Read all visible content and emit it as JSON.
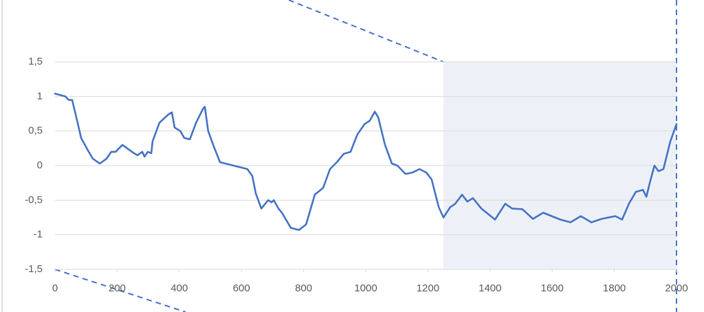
{
  "chart_data": {
    "type": "line",
    "x": [
      0,
      33,
      44,
      55,
      66,
      84,
      106,
      122,
      144,
      166,
      181,
      195,
      217,
      232,
      254,
      265,
      281,
      288,
      299,
      310,
      314,
      336,
      365,
      376,
      385,
      403,
      416,
      434,
      454,
      476,
      482,
      493,
      509,
      531,
      575,
      619,
      635,
      646,
      664,
      686,
      697,
      704,
      719,
      730,
      759,
      785,
      808,
      836,
      863,
      885,
      907,
      929,
      951,
      973,
      996,
      1013,
      1029,
      1040,
      1062,
      1084,
      1102,
      1128,
      1150,
      1173,
      1195,
      1212,
      1235,
      1250,
      1272,
      1288,
      1310,
      1327,
      1345,
      1372,
      1416,
      1449,
      1471,
      1504,
      1538,
      1571,
      1593,
      1626,
      1659,
      1692,
      1726,
      1759,
      1803,
      1825,
      1847,
      1869,
      1892,
      1903,
      1914,
      1929,
      1942,
      1958,
      1980,
      2000
    ],
    "series": [
      {
        "color": "#4472c4",
        "values": [
          1.04,
          1.0,
          0.95,
          0.95,
          0.75,
          0.4,
          0.22,
          0.1,
          0.03,
          0.1,
          0.2,
          0.2,
          0.3,
          0.25,
          0.18,
          0.15,
          0.2,
          0.13,
          0.2,
          0.18,
          0.35,
          0.62,
          0.74,
          0.77,
          0.55,
          0.5,
          0.4,
          0.38,
          0.62,
          0.82,
          0.85,
          0.5,
          0.3,
          0.05,
          0.0,
          -0.05,
          -0.15,
          -0.4,
          -0.62,
          -0.5,
          -0.53,
          -0.5,
          -0.62,
          -0.68,
          -0.9,
          -0.93,
          -0.85,
          -0.42,
          -0.32,
          -0.05,
          0.05,
          0.17,
          0.2,
          0.45,
          0.6,
          0.65,
          0.78,
          0.7,
          0.3,
          0.03,
          0.0,
          -0.12,
          -0.1,
          -0.05,
          -0.1,
          -0.2,
          -0.6,
          -0.75,
          -0.6,
          -0.55,
          -0.42,
          -0.52,
          -0.47,
          -0.62,
          -0.78,
          -0.55,
          -0.62,
          -0.63,
          -0.77,
          -0.68,
          -0.72,
          -0.78,
          -0.82,
          -0.73,
          -0.82,
          -0.77,
          -0.73,
          -0.78,
          -0.55,
          -0.38,
          -0.35,
          -0.45,
          -0.25,
          0.0,
          -0.08,
          -0.05,
          0.35,
          0.6
        ]
      }
    ],
    "xlim": [
      0,
      2000
    ],
    "xticks": [
      0,
      200,
      400,
      600,
      800,
      1000,
      1200,
      1400,
      1600,
      1800,
      2000
    ],
    "ylim": [
      -1.5,
      1.5
    ],
    "yticks": [
      {
        "value": -1.5,
        "label": "-1,5"
      },
      -1,
      {
        "value": -0.5,
        "label": "-0,5"
      },
      0,
      {
        "value": 0.5,
        "label": "0,5"
      },
      1,
      {
        "value": 1.5,
        "label": "1,5"
      }
    ],
    "grid": true,
    "highlight": {
      "x": [
        1250,
        2000
      ],
      "color": "#edf1f7"
    }
  }
}
